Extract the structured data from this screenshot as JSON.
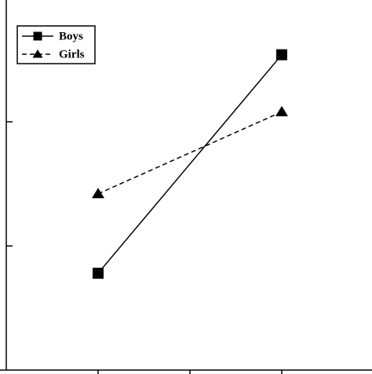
{
  "chart_data": {
    "type": "line",
    "x": [
      1,
      3
    ],
    "series": [
      {
        "name": "Boys",
        "color": "#000000",
        "dash": "solid",
        "marker": "square",
        "values": [
          0.78,
          2.54
        ]
      },
      {
        "name": "Girls",
        "color": "#000000",
        "dash": "dashed",
        "marker": "triangle",
        "values": [
          1.42,
          2.08
        ]
      }
    ],
    "xlim": [
      0,
      4
    ],
    "xticks": [
      1,
      2,
      3
    ],
    "ylim": [
      0,
      3
    ],
    "yticks": [
      1,
      2
    ],
    "legend": "upper-left"
  }
}
